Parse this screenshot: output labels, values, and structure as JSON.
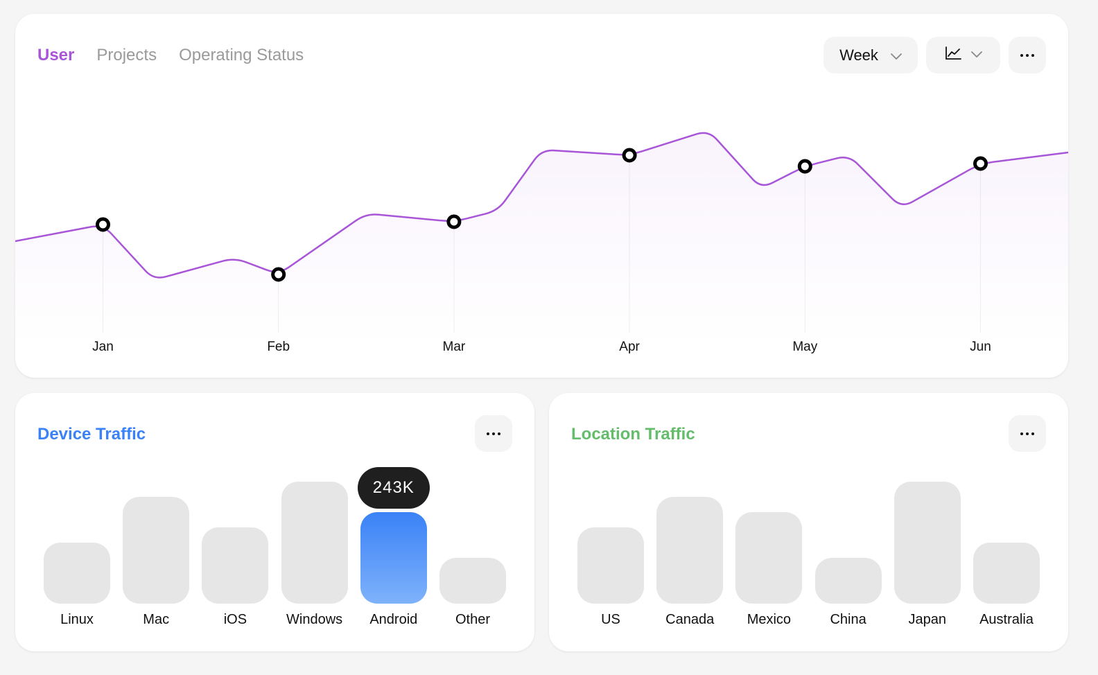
{
  "main": {
    "tabs": [
      {
        "label": "User",
        "active": true
      },
      {
        "label": "Projects",
        "active": false
      },
      {
        "label": "Operating Status",
        "active": false
      }
    ],
    "period_select": {
      "value": "Week",
      "icon": "chevron-down-icon"
    },
    "chart_type_select": {
      "icon": "line-chart-icon"
    },
    "more_icon": "more-horizontal-icon",
    "accent_color": "#a855d8"
  },
  "chart_data": {
    "type": "line",
    "title": "",
    "xlabel": "",
    "ylabel": "",
    "ylim": [
      0,
      100
    ],
    "grid": false,
    "months": [
      "Jan",
      "Feb",
      "Mar",
      "Apr",
      "May",
      "Jun"
    ],
    "x": [
      -0.5,
      0,
      0.29,
      0.75,
      1,
      1.5,
      2,
      2.25,
      2.5,
      3,
      3.45,
      3.75,
      4,
      4.25,
      4.55,
      5,
      5.5
    ],
    "series": [
      {
        "values": [
          38,
          44,
          24,
          32,
          26,
          48,
          45,
          49,
          71,
          69,
          78,
          57,
          65,
          69,
          50,
          66,
          70
        ],
        "color": "#a855d8"
      }
    ],
    "highlight_points": [
      {
        "month": "Jan",
        "value": 44
      },
      {
        "month": "Feb",
        "value": 26
      },
      {
        "month": "Mar",
        "value": 45
      },
      {
        "month": "Apr",
        "value": 69
      },
      {
        "month": "May",
        "value": 65
      },
      {
        "month": "Jun",
        "value": 66
      }
    ]
  },
  "device_traffic": {
    "title": "Device Traffic",
    "title_color": "#3b82f6",
    "more_icon": "more-horizontal-icon",
    "tooltip": "243K",
    "chart_data": {
      "type": "bar",
      "categories": [
        "Linux",
        "Mac",
        "iOS",
        "Windows",
        "Android",
        "Other"
      ],
      "values": [
        88,
        154,
        110,
        176,
        132,
        66
      ],
      "ylim": [
        0,
        204
      ],
      "highlighted": "Android",
      "highlight_color": "#3b82f6"
    }
  },
  "location_traffic": {
    "title": "Location Traffic",
    "title_color": "#63bd6a",
    "more_icon": "more-horizontal-icon",
    "chart_data": {
      "type": "bar",
      "categories": [
        "US",
        "Canada",
        "Mexico",
        "China",
        "Japan",
        "Australia"
      ],
      "values": [
        110,
        154,
        132,
        66,
        176,
        88
      ],
      "ylim": [
        0,
        204
      ]
    }
  }
}
